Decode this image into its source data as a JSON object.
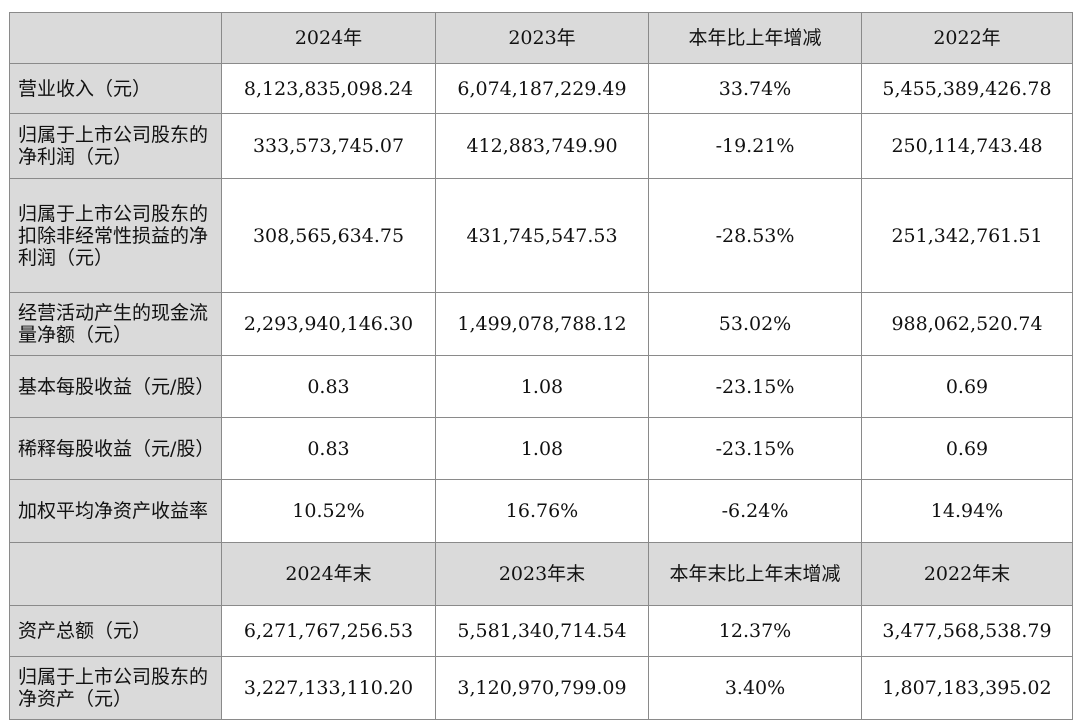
{
  "header1": [
    "",
    "2024年",
    "2023年",
    "本年比上年增减",
    "2022年"
  ],
  "rows1": [
    {
      "label": "营业收入（元）",
      "values": [
        "8,123,835,098.24",
        "6,074,187,229.49",
        "33.74%",
        "5,455,389,426.78"
      ]
    },
    {
      "label": "归属于上市公司股东的净利润（元）",
      "values": [
        "333,573,745.07",
        "412,883,749.90",
        "-19.21%",
        "250,114,743.48"
      ]
    },
    {
      "label": "归属于上市公司股东的扣除非经常性损益的净利润（元）",
      "values": [
        "308,565,634.75",
        "431,745,547.53",
        "-28.53%",
        "251,342,761.51"
      ]
    },
    {
      "label": "经营活动产生的现金流量净额（元）",
      "values": [
        "2,293,940,146.30",
        "1,499,078,788.12",
        "53.02%",
        "988,062,520.74"
      ]
    },
    {
      "label": "基本每股收益（元/股）",
      "values": [
        "0.83",
        "1.08",
        "-23.15%",
        "0.69"
      ]
    },
    {
      "label": "稀释每股收益（元/股）",
      "values": [
        "0.83",
        "1.08",
        "-23.15%",
        "0.69"
      ]
    },
    {
      "label": "加权平均净资产收益率",
      "values": [
        "10.52%",
        "16.76%",
        "-6.24%",
        "14.94%"
      ]
    }
  ],
  "header2": [
    "",
    "2024年末",
    "2023年末",
    "本年末比上年末增减",
    "2022年末"
  ],
  "rows2": [
    {
      "label": "资产总额（元）",
      "values": [
        "6,271,767,256.53",
        "5,581,340,714.54",
        "12.37%",
        "3,477,568,538.79"
      ]
    },
    {
      "label": "归属于上市公司股东的净资产（元）",
      "values": [
        "3,227,133,110.20",
        "3,120,970,799.09",
        "3.40%",
        "1,807,183,395.02"
      ]
    }
  ]
}
